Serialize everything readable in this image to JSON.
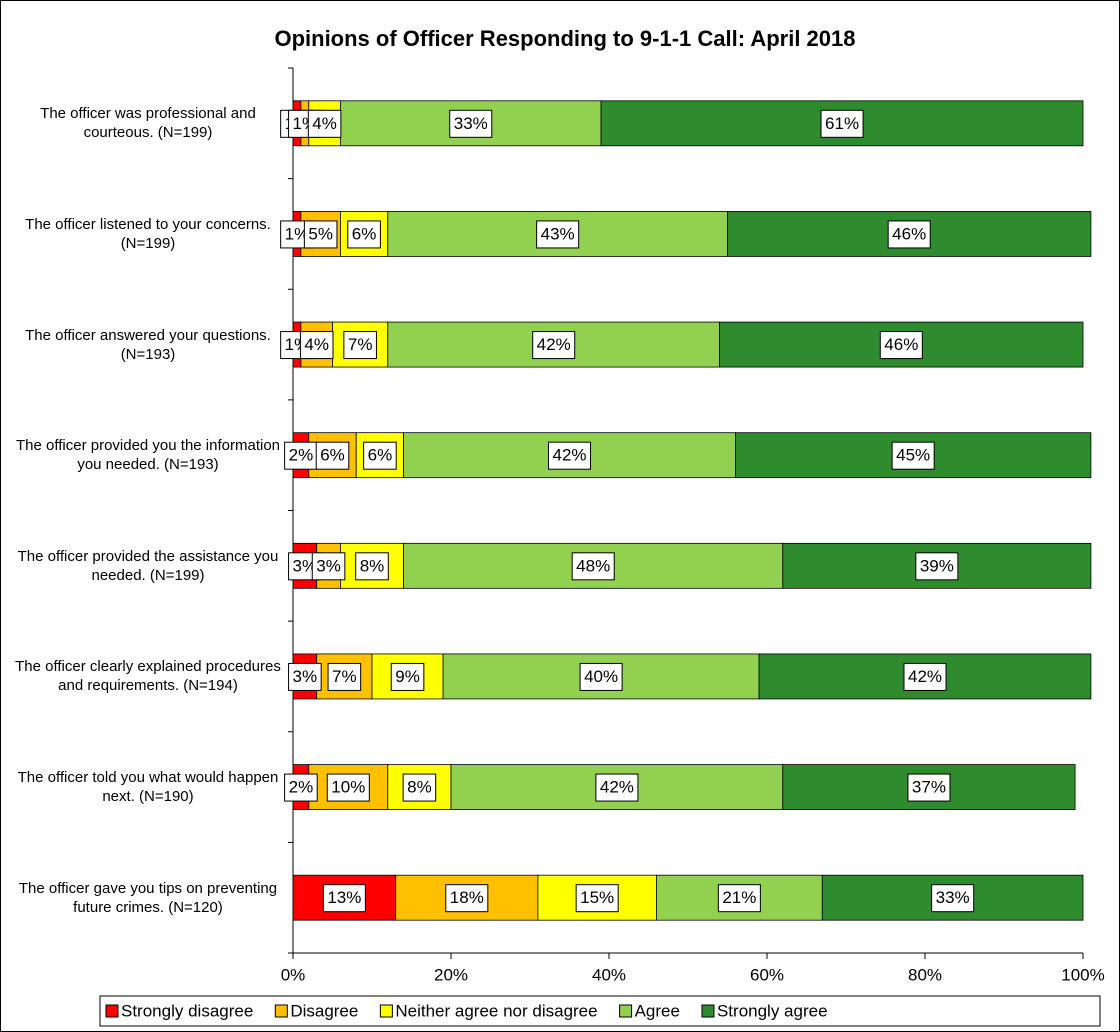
{
  "chart_data": {
    "type": "stacked_bar_horizontal",
    "title": "Opinions of Officer Responding to 9-1-1 Call: April 2018",
    "categories": [
      "The officer was professional and courteous. (N=199)",
      "The officer listened to your concerns. (N=199)",
      "The officer answered your questions. (N=193)",
      "The officer provided you the information you needed. (N=193)",
      "The officer provided the assistance you needed. (N=199)",
      "The officer clearly explained procedures and requirements. (N=194)",
      "The officer told you what would happen next. (N=190)",
      "The officer gave you tips on preventing future crimes. (N=120)"
    ],
    "series": [
      {
        "name": "Strongly disagree",
        "color": "#ff0000",
        "values": [
          1,
          1,
          1,
          2,
          3,
          3,
          2,
          13
        ],
        "value_labels": [
          "1%",
          "1%",
          "1%",
          "2%",
          "3%",
          "3%",
          "2%",
          "13%"
        ]
      },
      {
        "name": "Disagree",
        "color": "#ffc000",
        "values": [
          1,
          5,
          4,
          6,
          3,
          7,
          10,
          18
        ],
        "value_labels": [
          "1%",
          "5%",
          "4%",
          "6%",
          "3%",
          "7%",
          "10%",
          "18%"
        ]
      },
      {
        "name": "Neither agree nor disagree",
        "color": "#ffff00",
        "values": [
          4,
          6,
          7,
          6,
          8,
          9,
          8,
          15
        ],
        "value_labels": [
          "4%",
          "6%",
          "7%",
          "6%",
          "8%",
          "9%",
          "8%",
          "15%"
        ]
      },
      {
        "name": "Agree",
        "color": "#92d050",
        "values": [
          33,
          43,
          42,
          42,
          48,
          40,
          42,
          21
        ],
        "value_labels": [
          "33%",
          "43%",
          "42%",
          "42%",
          "48%",
          "40%",
          "42%",
          "21%"
        ]
      },
      {
        "name": "Strongly agree",
        "color": "#2e8b2e",
        "values": [
          61,
          46,
          46,
          45,
          39,
          42,
          37,
          33
        ],
        "value_labels": [
          "61%",
          "46%",
          "46%",
          "45%",
          "39%",
          "42%",
          "37%",
          "33%"
        ]
      }
    ],
    "xlim": [
      0,
      100
    ],
    "xticks": [
      {
        "value": 0,
        "label": "0%"
      },
      {
        "value": 20,
        "label": "20%"
      },
      {
        "value": 40,
        "label": "40%"
      },
      {
        "value": 60,
        "label": "60%"
      },
      {
        "value": 80,
        "label": "80%"
      },
      {
        "value": 100,
        "label": "100%"
      }
    ],
    "legend": "bottom"
  }
}
